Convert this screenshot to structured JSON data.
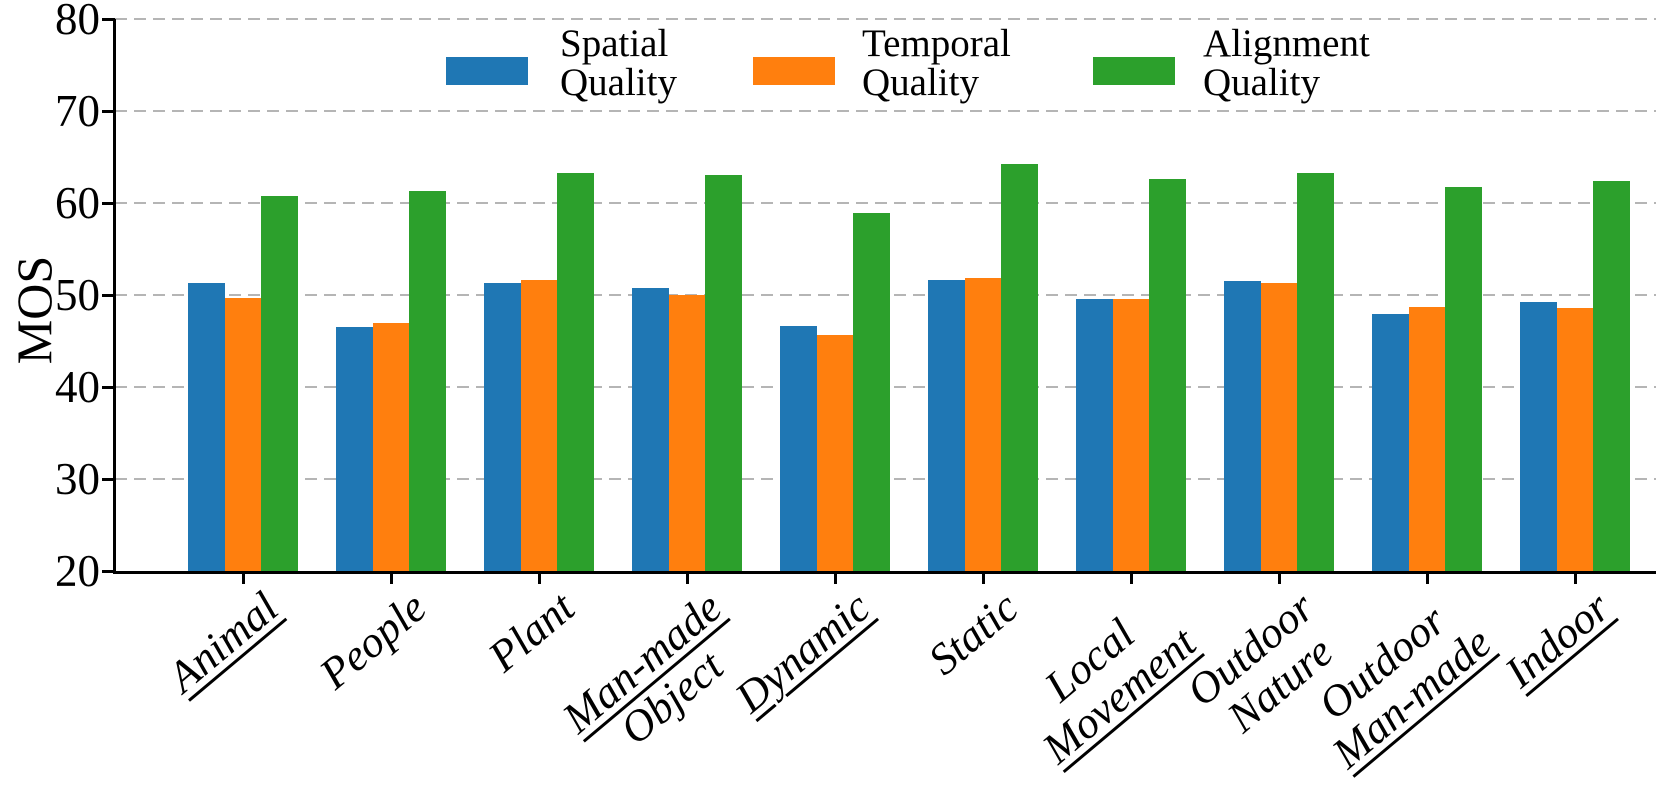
{
  "figure": {
    "background": "#ffffff"
  },
  "chart_data": {
    "type": "bar",
    "title": "",
    "xlabel": "",
    "ylabel": "MOS",
    "ylim": [
      20,
      80
    ],
    "yticks": [
      20,
      30,
      40,
      50,
      60,
      70,
      80
    ],
    "grid": {
      "axis": "y",
      "style": "dashed",
      "color": "#b5b5b5"
    },
    "legend_position": "top",
    "categories": [
      "Animal",
      "People",
      "Plant",
      "Man-made Object",
      "Dynamic",
      "Static",
      "Local Movement",
      "Outdoor Nature",
      "Outdoor Man-made",
      "Indoor"
    ],
    "categories_lines": [
      [
        {
          "text": "Animal",
          "underline": true
        }
      ],
      [
        {
          "text": "People",
          "underline": false
        }
      ],
      [
        {
          "text": "Plant",
          "underline": false
        }
      ],
      [
        {
          "text": "Man-made",
          "underline": true
        },
        {
          "text": "Object",
          "underline": false
        }
      ],
      [
        {
          "text": "Dynamic",
          "underline": true
        }
      ],
      [
        {
          "text": "Static",
          "underline": false
        }
      ],
      [
        {
          "text": "Local",
          "underline": false
        },
        {
          "text": "Movement",
          "underline": true
        }
      ],
      [
        {
          "text": "Outdoor",
          "underline": false
        },
        {
          "text": "Nature",
          "underline": false
        }
      ],
      [
        {
          "text": "Outdoor",
          "underline": false
        },
        {
          "text": "Man-made",
          "underline": true
        }
      ],
      [
        {
          "text": "Indoor",
          "underline": true
        }
      ]
    ],
    "series": [
      {
        "name": "Spatial Quality",
        "label_lines": [
          "Spatial",
          "Quality"
        ],
        "color": "#1f77b4",
        "values": [
          51.3,
          46.5,
          51.3,
          50.8,
          46.6,
          51.6,
          49.6,
          51.5,
          47.9,
          49.2
        ]
      },
      {
        "name": "Temporal Quality",
        "label_lines": [
          "Temporal",
          "Quality"
        ],
        "color": "#ff7f0e",
        "values": [
          49.7,
          47.0,
          51.6,
          50.0,
          45.7,
          51.9,
          49.6,
          51.3,
          48.7,
          48.6
        ]
      },
      {
        "name": "Alignment Quality",
        "label_lines": [
          "Alignment",
          "Quality"
        ],
        "color": "#2ca02c",
        "values": [
          60.8,
          61.3,
          63.3,
          63.0,
          58.9,
          64.2,
          62.6,
          63.3,
          61.7,
          62.4
        ]
      }
    ]
  }
}
